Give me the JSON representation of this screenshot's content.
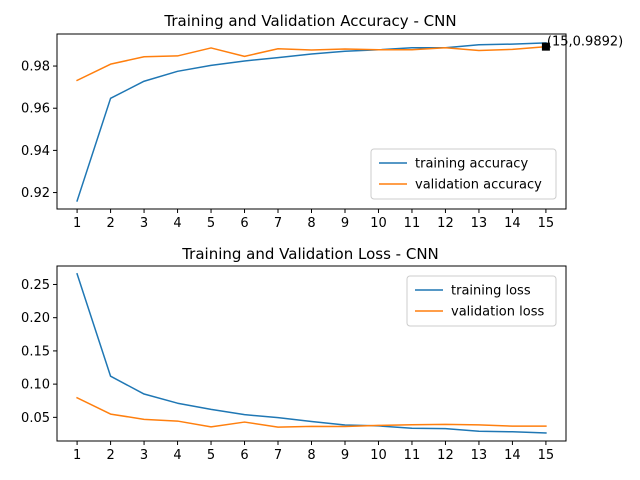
{
  "chart_data": [
    {
      "type": "line",
      "title": "Training and Validation Accuracy - CNN",
      "xlabel": "",
      "ylabel": "",
      "x": [
        1,
        2,
        3,
        4,
        5,
        6,
        7,
        8,
        9,
        10,
        11,
        12,
        13,
        14,
        15
      ],
      "x_ticks": [
        "1",
        "2",
        "3",
        "4",
        "5",
        "6",
        "7",
        "8",
        "9",
        "10",
        "11",
        "12",
        "13",
        "14",
        "15"
      ],
      "y_ticks": [
        "0.92",
        "0.94",
        "0.96",
        "0.98"
      ],
      "y_tick_values": [
        0.92,
        0.94,
        0.96,
        0.98
      ],
      "xlim": [
        0.4,
        15.6
      ],
      "ylim": [
        0.9122,
        0.9952
      ],
      "grid": false,
      "legend_position": "lower-right",
      "series": [
        {
          "name": "training accuracy",
          "color": "#1f77b4",
          "values": [
            0.916,
            0.9647,
            0.9728,
            0.9775,
            0.9803,
            0.9824,
            0.984,
            0.9857,
            0.987,
            0.9877,
            0.9887,
            0.9887,
            0.9901,
            0.9904,
            0.991
          ]
        },
        {
          "name": "validation accuracy",
          "color": "#ff7f0e",
          "values": [
            0.9732,
            0.9809,
            0.9844,
            0.9848,
            0.9886,
            0.9846,
            0.9882,
            0.9876,
            0.9881,
            0.9877,
            0.9877,
            0.9887,
            0.9874,
            0.9879,
            0.9892
          ]
        }
      ],
      "annotation": {
        "text": "(15,0.9892)",
        "x": 15,
        "y": 0.9892,
        "marker_color": "#000000"
      }
    },
    {
      "type": "line",
      "title": "Training and Validation Loss - CNN",
      "xlabel": "",
      "ylabel": "",
      "x": [
        1,
        2,
        3,
        4,
        5,
        6,
        7,
        8,
        9,
        10,
        11,
        12,
        13,
        14,
        15
      ],
      "x_ticks": [
        "1",
        "2",
        "3",
        "4",
        "5",
        "6",
        "7",
        "8",
        "9",
        "10",
        "11",
        "12",
        "13",
        "14",
        "15"
      ],
      "y_ticks": [
        "0.05",
        "0.10",
        "0.15",
        "0.20",
        "0.25"
      ],
      "y_tick_values": [
        0.05,
        0.1,
        0.15,
        0.2,
        0.25
      ],
      "xlim": [
        0.4,
        15.6
      ],
      "ylim": [
        0.0144,
        0.2778
      ],
      "grid": false,
      "legend_position": "upper-right",
      "series": [
        {
          "name": "training loss",
          "color": "#1f77b4",
          "values": [
            0.266,
            0.1119,
            0.0851,
            0.0713,
            0.062,
            0.0541,
            0.0495,
            0.0437,
            0.0385,
            0.0371,
            0.0335,
            0.0331,
            0.0291,
            0.0283,
            0.0264
          ]
        },
        {
          "name": "validation loss",
          "color": "#ff7f0e",
          "values": [
            0.0794,
            0.0549,
            0.047,
            0.0444,
            0.0357,
            0.0429,
            0.0353,
            0.0365,
            0.0362,
            0.0379,
            0.0388,
            0.0394,
            0.0387,
            0.0367,
            0.0367
          ]
        }
      ]
    }
  ]
}
